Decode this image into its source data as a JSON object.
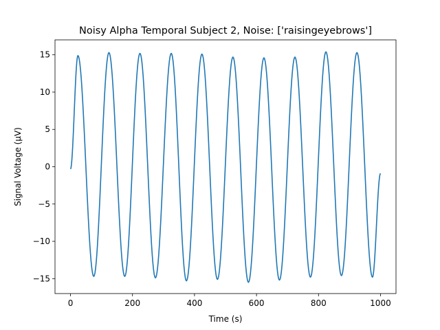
{
  "chart_data": {
    "type": "line",
    "title": "Noisy Alpha Temporal Subject 2, Noise: ['raisingeyebrows']",
    "xlabel": "Time (s)",
    "ylabel": "Signal Voltage (μV)",
    "xlim": [
      -50,
      1050
    ],
    "ylim": [
      -17,
      17
    ],
    "xticks": [
      0,
      200,
      400,
      600,
      800,
      1000
    ],
    "yticks": [
      -15,
      -10,
      -5,
      0,
      5,
      10,
      15
    ],
    "xtick_labels": [
      "0",
      "200",
      "400",
      "600",
      "800",
      "1000"
    ],
    "ytick_labels": [
      "−15",
      "−10",
      "−5",
      "0",
      "5",
      "10",
      "15"
    ],
    "grid": false,
    "series": [
      {
        "name": "signal",
        "color": "#1f77b4",
        "extrema": [
          {
            "x": 0,
            "y": -0.3
          },
          {
            "x": 24,
            "y": 14.9
          },
          {
            "x": 75,
            "y": -14.7
          },
          {
            "x": 124,
            "y": 15.3
          },
          {
            "x": 175,
            "y": -14.7
          },
          {
            "x": 224,
            "y": 15.2
          },
          {
            "x": 274,
            "y": -14.9
          },
          {
            "x": 325,
            "y": 15.2
          },
          {
            "x": 374,
            "y": -15.3
          },
          {
            "x": 424,
            "y": 15.1
          },
          {
            "x": 474,
            "y": -15.1
          },
          {
            "x": 524,
            "y": 14.7
          },
          {
            "x": 574,
            "y": -15.5
          },
          {
            "x": 624,
            "y": 14.6
          },
          {
            "x": 674,
            "y": -15.2
          },
          {
            "x": 724,
            "y": 14.7
          },
          {
            "x": 774,
            "y": -14.8
          },
          {
            "x": 824,
            "y": 15.4
          },
          {
            "x": 874,
            "y": -14.6
          },
          {
            "x": 924,
            "y": 15.3
          },
          {
            "x": 974,
            "y": -14.8
          },
          {
            "x": 1000,
            "y": -0.9
          }
        ]
      }
    ]
  }
}
